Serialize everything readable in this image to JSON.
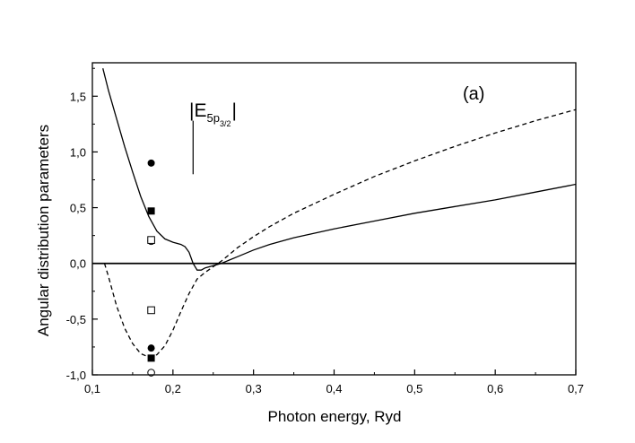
{
  "chart_data": {
    "type": "line",
    "title": "",
    "panel_label": "(a)",
    "xlabel": "Photon energy, Ryd",
    "ylabel": "Angular distribution parameters",
    "xlim": [
      0.1,
      0.7
    ],
    "ylim": [
      -1.0,
      1.8
    ],
    "x_ticks": [
      0.1,
      0.2,
      0.3,
      0.4,
      0.5,
      0.6,
      0.7
    ],
    "x_tick_labels": [
      "0,1",
      "0,2",
      "0,3",
      "0,4",
      "0,5",
      "0,6",
      "0,7"
    ],
    "y_ticks": [
      -1.0,
      -0.5,
      0.0,
      0.5,
      1.0,
      1.5
    ],
    "y_tick_labels": [
      "-1,0",
      "-0,5",
      "0,0",
      "0,5",
      "1,0",
      "1,5"
    ],
    "grid": false,
    "zero_line": true,
    "threshold_annotation": {
      "x": 0.225,
      "y_range": [
        0.8,
        1.28
      ],
      "label_parts": [
        "|E",
        "5p",
        "3/2",
        "|"
      ]
    },
    "series": [
      {
        "style": "solid",
        "x": [
          0.113,
          0.12,
          0.13,
          0.14,
          0.15,
          0.16,
          0.17,
          0.18,
          0.19,
          0.2,
          0.21,
          0.215,
          0.22,
          0.225,
          0.23,
          0.235,
          0.24,
          0.25,
          0.26,
          0.27,
          0.28,
          0.3,
          0.32,
          0.35,
          0.4,
          0.45,
          0.5,
          0.55,
          0.6,
          0.65,
          0.7
        ],
        "y": [
          1.75,
          1.55,
          1.3,
          1.05,
          0.82,
          0.6,
          0.42,
          0.29,
          0.22,
          0.19,
          0.17,
          0.15,
          0.1,
          0.0,
          -0.06,
          -0.06,
          -0.04,
          -0.02,
          0.0,
          0.03,
          0.06,
          0.12,
          0.17,
          0.23,
          0.31,
          0.38,
          0.45,
          0.51,
          0.57,
          0.64,
          0.71
        ]
      },
      {
        "style": "dashed",
        "x": [
          0.115,
          0.12,
          0.13,
          0.14,
          0.15,
          0.16,
          0.17,
          0.18,
          0.19,
          0.2,
          0.21,
          0.22,
          0.23,
          0.24,
          0.25,
          0.26,
          0.27,
          0.28,
          0.3,
          0.32,
          0.35,
          0.4,
          0.45,
          0.5,
          0.55,
          0.6,
          0.65,
          0.7
        ],
        "y": [
          0.0,
          -0.12,
          -0.38,
          -0.58,
          -0.72,
          -0.81,
          -0.84,
          -0.82,
          -0.74,
          -0.6,
          -0.43,
          -0.27,
          -0.14,
          -0.08,
          -0.03,
          0.02,
          0.08,
          0.14,
          0.24,
          0.33,
          0.45,
          0.62,
          0.78,
          0.92,
          1.05,
          1.17,
          1.28,
          1.38
        ]
      }
    ],
    "markers": [
      {
        "shape": "filled-circle",
        "x": 0.173,
        "y": [
          0.9,
          -0.76
        ]
      },
      {
        "shape": "filled-square",
        "x": 0.173,
        "y": [
          0.47,
          -0.85
        ]
      },
      {
        "shape": "open-circle",
        "x": 0.173,
        "y": [
          0.2,
          -0.98
        ]
      },
      {
        "shape": "open-square",
        "x": 0.173,
        "y": [
          0.21,
          -0.42
        ]
      }
    ],
    "colors": {
      "line": "#000000",
      "background": "#ffffff"
    }
  }
}
